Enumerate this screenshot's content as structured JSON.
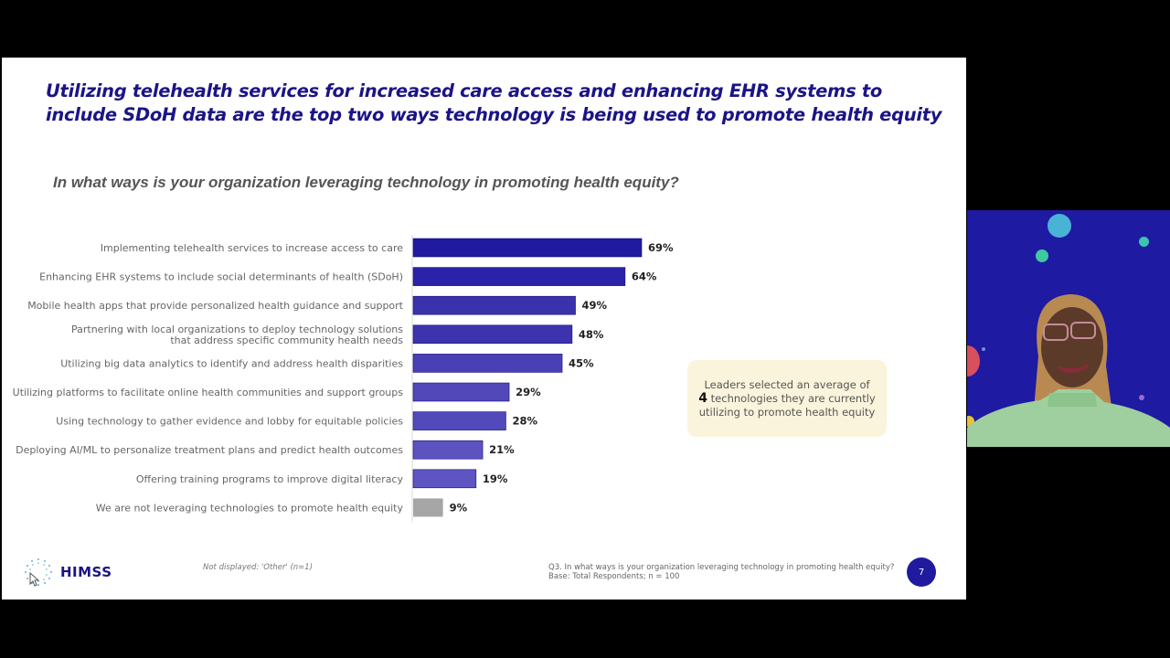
{
  "slide": {
    "headline": "Utilizing telehealth services for increased care access and enhancing EHR systems to include SDoH data are the top two ways technology is being used to promote health equity",
    "question": "In what ways is your organization leveraging technology in promoting health equity?",
    "callout": {
      "line1": "Leaders selected an average of",
      "number": "4",
      "line2": " technologies they are currently utilizing to promote health equity"
    },
    "logo_text": "HIMSS",
    "footnote_left": "Not displayed: 'Other' (n=1)",
    "footnote_right_line1": "Q3. In what ways is your organization leveraging technology in promoting health equity?",
    "footnote_right_line2": "Base: Total Respondents; n = 100",
    "page_number": "7"
  },
  "chart_data": {
    "type": "bar",
    "orientation": "horizontal",
    "title": "In what ways is your organization leveraging technology in promoting health equity?",
    "xlabel": "",
    "ylabel": "",
    "xlim": [
      0,
      100
    ],
    "unit": "%",
    "grid": false,
    "categories": [
      [
        "Implementing telehealth services to increase access to care"
      ],
      [
        "Enhancing EHR systems to include social determinants of health (SDoH)"
      ],
      [
        "Mobile health apps that provide personalized health guidance and support"
      ],
      [
        "Partnering with local organizations to deploy technology solutions",
        "that address specific community health needs"
      ],
      [
        "Utilizing big data analytics to identify and address health disparities"
      ],
      [
        "Utilizing platforms to facilitate online health communities and support groups"
      ],
      [
        "Using technology to gather evidence and lobby for equitable policies"
      ],
      [
        "Deploying AI/ML to personalize treatment plans and predict health outcomes"
      ],
      [
        "Offering training programs to improve digital literacy"
      ],
      [
        "We are not leveraging technologies to promote health equity"
      ]
    ],
    "values": [
      69,
      64,
      49,
      48,
      45,
      29,
      28,
      21,
      19,
      9
    ],
    "value_labels": [
      "69%",
      "64%",
      "49%",
      "48%",
      "45%",
      "29%",
      "28%",
      "21%",
      "19%",
      "9%"
    ],
    "colors": [
      "#1f1aa0",
      "#2a22a8",
      "#3a31ad",
      "#3d33ae",
      "#4a40b5",
      "#5248ba",
      "#5249ba",
      "#5c52c0",
      "#5e55c2",
      "#a6a6a6"
    ]
  },
  "webcam": {
    "background": "#1f1aa2"
  }
}
